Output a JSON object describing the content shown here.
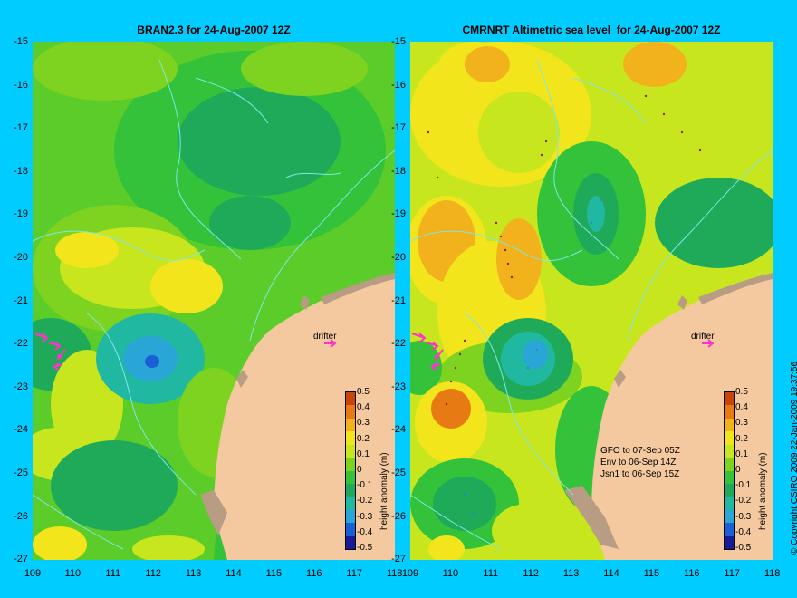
{
  "panels": {
    "left_title": "BRAN2.3 for 24-Aug-2007 12Z",
    "right_title": "CMRNRT Altimetric sea level  for 24-Aug-2007 12Z"
  },
  "axes": {
    "y_ticks": [
      "-15",
      "-16",
      "-17",
      "-18",
      "-19",
      "-20",
      "-21",
      "-22",
      "-23",
      "-24",
      "-25",
      "-26",
      "-27"
    ],
    "x_ticks": [
      "109",
      "110",
      "111",
      "112",
      "113",
      "114",
      "115",
      "116",
      "117",
      "118"
    ]
  },
  "labels": {
    "drifter": "drifter"
  },
  "satellites": [
    "GFO to 07-Sep 05Z",
    "Env to 06-Sep 14Z",
    "Jsn1 to 06-Sep 15Z"
  ],
  "colorbar": {
    "ticks": [
      "0.5",
      "0.4",
      "0.3",
      "0.2",
      "0.1",
      "0",
      "-0.1",
      "-0.2",
      "-0.3",
      "-0.4",
      "-0.5"
    ],
    "label": "height anomaly (m)",
    "colors": [
      "#1a1a99",
      "#1a5fd6",
      "#2aa6d6",
      "#20b8a0",
      "#1faa5a",
      "#33c23a",
      "#7ed321",
      "#c8e61e",
      "#f2e51c",
      "#f2b21c",
      "#e87a14",
      "#c8440a"
    ]
  },
  "copyright": "© Copyright CSIRO 2009   22-Jan-2009 19:37:56"
}
